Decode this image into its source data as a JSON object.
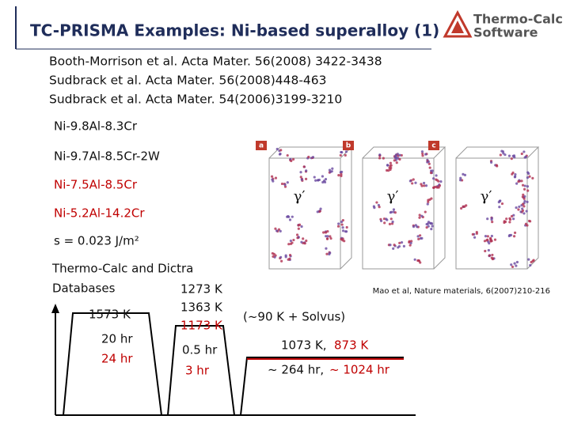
{
  "header": {
    "title": "TC-PRISMA Examples: Ni-based superalloy (1)",
    "logo": {
      "line1": "Thermo-Calc",
      "line2": "Software"
    }
  },
  "references": [
    "Booth-Morrison et al. Acta Mater. 56(2008) 3422-3438",
    "Sudbrack et al. Acta Mater. 56(2008)448-463",
    "Sudbrack et al. Acta Mater. 54(2006)3199-3210"
  ],
  "alloys": [
    "Ni-9.8Al-8.3Cr",
    "Ni-9.7Al-8.5Cr-2W",
    "Ni-7.5Al-8.5Cr",
    "Ni-5.2Al-14.2Cr"
  ],
  "interfacial_energy": "s = 0.023 J/m²",
  "databases": [
    "Thermo-Calc and Dictra",
    "Databases"
  ],
  "heat_treatment": {
    "solution": {
      "temperature": "1573 K",
      "times": [
        "20 hr",
        "24 hr"
      ]
    },
    "aging1": {
      "temperatures": [
        "1273 K",
        "1363 K",
        "1173 K"
      ],
      "times": [
        "0.5 hr",
        "3 hr"
      ]
    },
    "note": "(~90 K + Solvus)",
    "aging2": {
      "temperatures": [
        "1073 K,",
        "873 K"
      ],
      "times": [
        "~ 264 hr,",
        "~ 1024 hr"
      ]
    }
  },
  "figure": {
    "panels": [
      {
        "label": "a",
        "phase": "γ′"
      },
      {
        "label": "b",
        "phase": "γ′"
      },
      {
        "label": "c",
        "phase": "γ′"
      }
    ],
    "caption": "Mao et al, Nature materials, 6(2007)210-216"
  }
}
